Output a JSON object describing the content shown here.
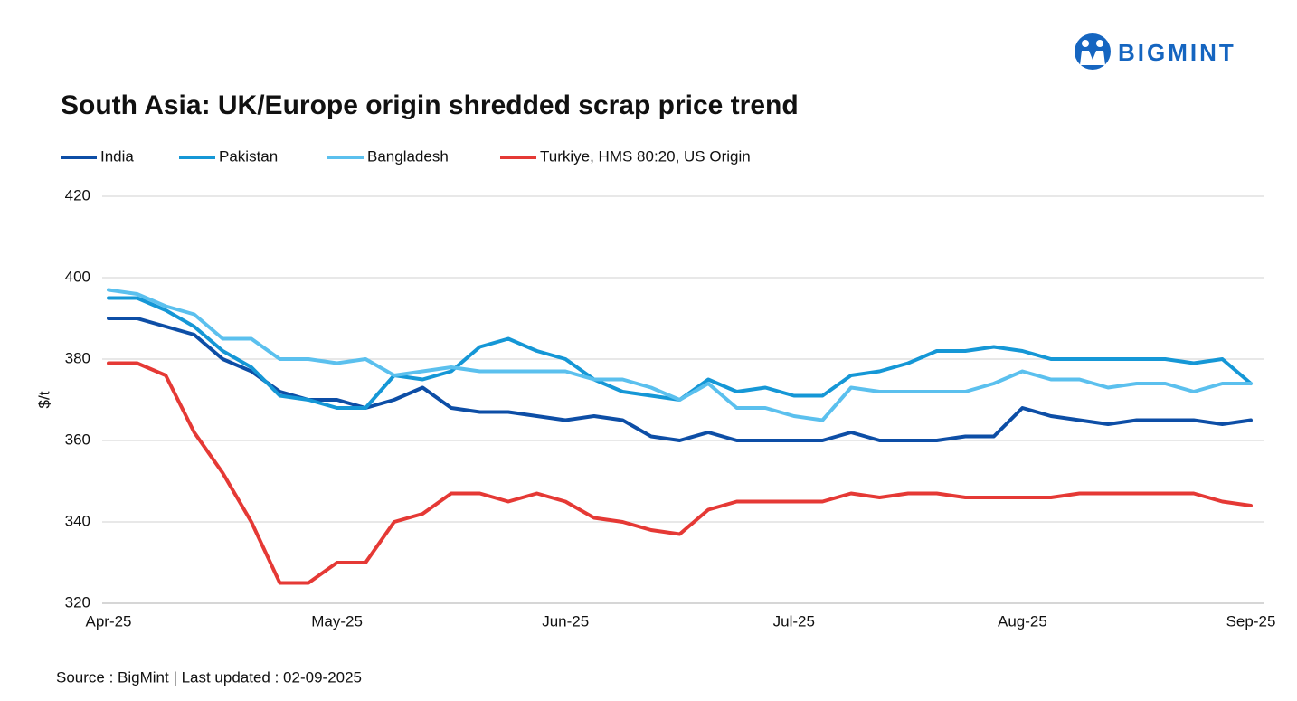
{
  "logo": "BIGMINT",
  "source": "Source : BigMint | Last updated : 02-09-2025",
  "chart_data": {
    "type": "line",
    "title": "South Asia: UK/Europe origin shredded scrap price trend",
    "y_label": "$/t",
    "categories": [
      "Apr-25",
      null,
      null,
      null,
      null,
      null,
      null,
      null,
      "May-25",
      null,
      null,
      null,
      null,
      null,
      null,
      null,
      "Jun-25",
      null,
      null,
      null,
      null,
      null,
      null,
      null,
      "Jul-25",
      null,
      null,
      null,
      null,
      null,
      null,
      null,
      "Aug-25",
      null,
      null,
      null,
      null,
      null,
      null,
      null,
      "Sep-25"
    ],
    "ylim": [
      320,
      420
    ],
    "yticks": [
      320,
      340,
      360,
      380,
      400,
      420
    ],
    "grid": true,
    "series": [
      {
        "name": "India",
        "color": "#0d4ea6",
        "values": [
          390,
          390,
          388,
          386,
          380,
          377,
          372,
          370,
          370,
          368,
          370,
          373,
          368,
          367,
          367,
          366,
          365,
          366,
          365,
          361,
          360,
          362,
          360,
          360,
          360,
          360,
          362,
          360,
          360,
          360,
          361,
          361,
          368,
          366,
          365,
          364,
          365,
          365,
          365,
          364,
          365
        ]
      },
      {
        "name": "Pakistan",
        "color": "#1597d6",
        "values": [
          395,
          395,
          392,
          388,
          382,
          378,
          371,
          370,
          368,
          368,
          376,
          375,
          377,
          383,
          385,
          382,
          380,
          375,
          372,
          371,
          370,
          375,
          372,
          373,
          371,
          371,
          376,
          377,
          379,
          382,
          382,
          383,
          382,
          380,
          380,
          380,
          380,
          380,
          379,
          380,
          374
        ]
      },
      {
        "name": "Bangladesh",
        "color": "#5bc0ee",
        "values": [
          397,
          396,
          393,
          391,
          385,
          385,
          380,
          380,
          379,
          380,
          376,
          377,
          378,
          377,
          377,
          377,
          377,
          375,
          375,
          373,
          370,
          374,
          368,
          368,
          366,
          365,
          373,
          372,
          372,
          372,
          372,
          374,
          377,
          375,
          375,
          373,
          374,
          374,
          372,
          374,
          374
        ]
      },
      {
        "name": "Turkiye, HMS 80:20, US Origin",
        "color": "#e53935",
        "values": [
          379,
          379,
          376,
          362,
          352,
          340,
          325,
          325,
          330,
          330,
          340,
          342,
          347,
          347,
          345,
          347,
          345,
          341,
          340,
          338,
          337,
          343,
          345,
          345,
          345,
          345,
          347,
          346,
          347,
          347,
          346,
          346,
          346,
          346,
          347,
          347,
          347,
          347,
          347,
          345,
          344
        ]
      }
    ]
  }
}
